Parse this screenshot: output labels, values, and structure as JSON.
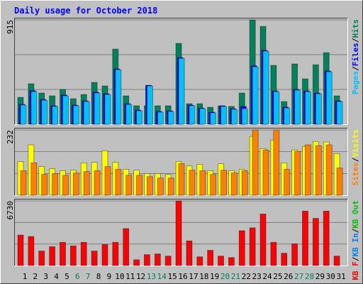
{
  "chart_data": {
    "type": "bar",
    "title": "Daily usage for October 2018",
    "categories": [
      "1",
      "2",
      "3",
      "4",
      "5",
      "6",
      "7",
      "8",
      "9",
      "10",
      "11",
      "12",
      "13",
      "14",
      "15",
      "16",
      "17",
      "18",
      "19",
      "20",
      "21",
      "22",
      "23",
      "24",
      "25",
      "26",
      "27",
      "28",
      "29",
      "30",
      "31"
    ],
    "category_colors": [
      "#000000",
      "#000000",
      "#000000",
      "#000000",
      "#000000",
      "#00805c",
      "#00805c",
      "#000000",
      "#000000",
      "#000000",
      "#000000",
      "#000000",
      "#00805c",
      "#00805c",
      "#000000",
      "#000000",
      "#000000",
      "#000000",
      "#000000",
      "#00805c",
      "#00805c",
      "#000000",
      "#000000",
      "#000000",
      "#000000",
      "#000000",
      "#00805c",
      "#00805c",
      "#000000",
      "#000000",
      "#000000"
    ],
    "separator": "/",
    "panels": [
      {
        "ylim": [
          0,
          915
        ],
        "yticks": [
          915
        ],
        "gridlines": [
          305,
          610
        ],
        "series": [
          {
            "name": "Pages",
            "color": "#00c0ff",
            "values": [
              168,
              286,
              211,
              156,
              249,
              162,
              199,
              274,
              261,
              479,
              174,
              118,
              336,
              106,
              112,
              578,
              162,
              137,
              100,
              156,
              131,
              137,
              504,
              641,
              286,
              143,
              299,
              286,
              267,
              460,
              199
            ]
          },
          {
            "name": "Files",
            "color": "#0000ff",
            "values": [
              175,
              295,
              218,
              162,
              256,
              168,
              205,
              282,
              268,
              485,
              180,
              124,
              342,
              112,
              118,
              585,
              168,
              142,
              106,
              162,
              136,
              156,
              512,
              648,
              292,
              150,
              306,
              292,
              274,
              468,
              205
            ]
          },
          {
            "name": "Hits",
            "color": "#00805c",
            "values": [
              236,
              355,
              274,
              249,
              305,
              224,
              261,
              367,
              336,
              659,
              249,
              162,
              162,
              162,
              162,
              709,
              180,
              180,
              149,
              162,
              156,
              274,
              915,
              858,
              516,
              199,
              529,
              398,
              522,
              628,
              249
            ]
          }
        ]
      },
      {
        "ylim": [
          0,
          232
        ],
        "yticks": [
          232
        ],
        "gridlines": [
          77,
          155
        ],
        "series": [
          {
            "name": "Sites",
            "color": "#ff8000",
            "values": [
              87,
              115,
              74,
              77,
              71,
              79,
              84,
              87,
              102,
              92,
              71,
              71,
              66,
              61,
              61,
              112,
              89,
              87,
              74,
              89,
              79,
              87,
              232,
              161,
              232,
              92,
              156,
              179,
              176,
              179,
              97
            ]
          },
          {
            "name": "Visits",
            "color": "#ffff00",
            "values": [
              120,
              179,
              102,
              94,
              87,
              89,
              115,
              117,
              158,
              117,
              92,
              89,
              77,
              77,
              74,
              120,
              105,
              110,
              87,
              112,
              87,
              92,
              209,
              166,
              196,
              115,
              161,
              173,
              191,
              189,
              148
            ]
          }
        ]
      },
      {
        "ylim": [
          0,
          6730
        ],
        "yticks": [
          6730
        ],
        "gridlines": [
          2243,
          4487
        ],
        "series": [
          {
            "name": "KB F",
            "color": "#ff0000",
            "values": [
              3175,
              3024,
              1512,
              1966,
              2419,
              2041,
              2419,
              1512,
              2192,
              2419,
              3856,
              605,
              1134,
              1210,
              983,
              6730,
              2570,
              907,
              1588,
              983,
              832,
              3629,
              3931,
              5368,
              2419,
              1285,
              2268,
              5670,
              4914,
              5670,
              983
            ]
          }
        ],
        "legend_only": [
          {
            "name": "KB In",
            "color": "#0080ff"
          },
          {
            "name": "KB Out",
            "color": "#00c000"
          }
        ]
      }
    ]
  }
}
